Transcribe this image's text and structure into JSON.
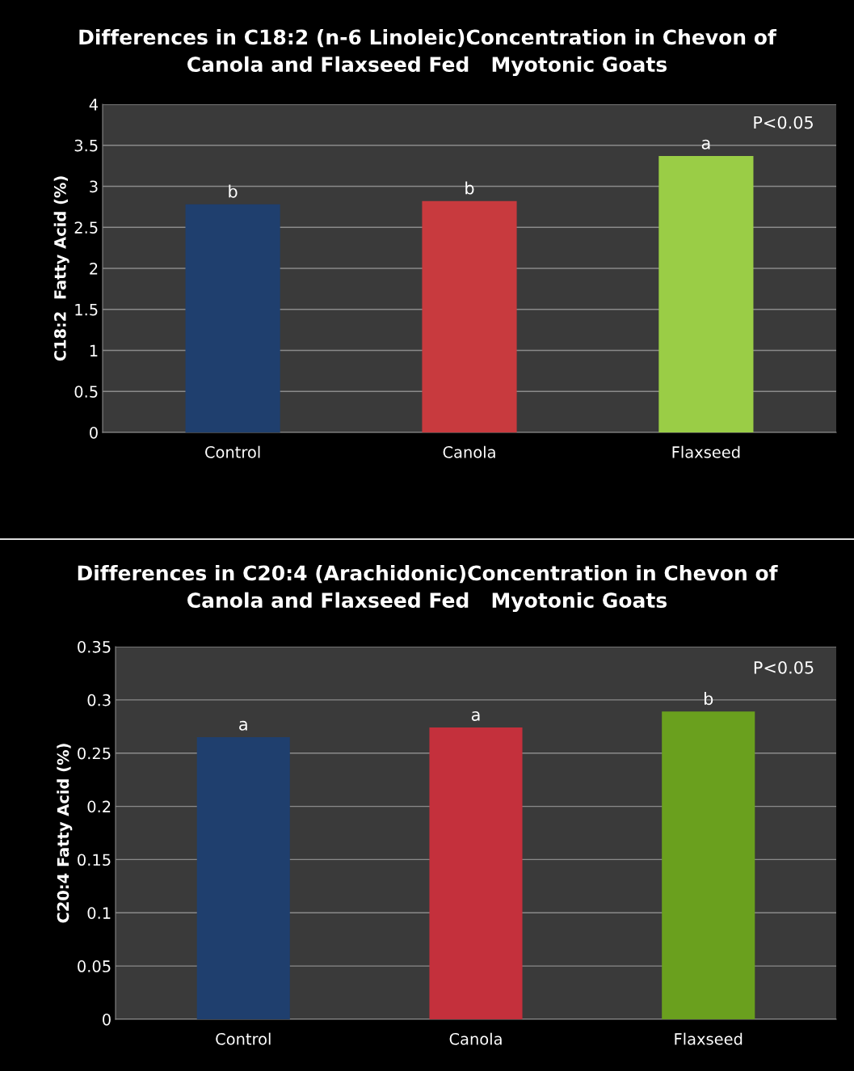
{
  "chart_data": [
    {
      "type": "bar",
      "title": "Differences in C18:2 (n-6 Linoleic)Concentration in Chevon of\nCanola and Flaxseed Fed   Myotonic Goats",
      "ylabel": "C18:2  Fatty Acid (%)",
      "categories": [
        "Control",
        "Canola",
        "Flaxseed"
      ],
      "values": [
        2.78,
        2.82,
        3.37
      ],
      "colors": [
        "#1f3f6e",
        "#c83a3e",
        "#9acd46"
      ],
      "ylim": [
        0,
        4
      ],
      "yticks": [
        0,
        0.5,
        1,
        1.5,
        2,
        2.5,
        3,
        3.5,
        4
      ],
      "grid": "y",
      "annotations": [
        {
          "text": "b",
          "x": "Control",
          "y": 2.78
        },
        {
          "text": "b",
          "x": "Canola",
          "y": 2.82
        },
        {
          "text": "a",
          "x": "Flaxseed",
          "y": 3.37
        },
        "P<0.05"
      ]
    },
    {
      "type": "bar",
      "title": "Differences in C20:4 (Arachidonic)Concentration in Chevon of\nCanola and Flaxseed Fed   Myotonic Goats",
      "ylabel": "C20:4 Fatty Acid (%)",
      "categories": [
        "Control",
        "Canola",
        "Flaxseed"
      ],
      "values": [
        0.265,
        0.274,
        0.289
      ],
      "colors": [
        "#1f3f6e",
        "#c4303c",
        "#6aa01e"
      ],
      "ylim": [
        0,
        0.35
      ],
      "yticks": [
        0,
        0.05,
        0.1,
        0.15,
        0.2,
        0.25,
        0.3,
        0.35
      ],
      "grid": "y",
      "annotations": [
        {
          "text": "a",
          "x": "Control",
          "y": 0.265
        },
        {
          "text": "a",
          "x": "Canola",
          "y": 0.274
        },
        {
          "text": "b",
          "x": "Flaxseed",
          "y": 0.289
        },
        "P<0.05"
      ]
    }
  ]
}
